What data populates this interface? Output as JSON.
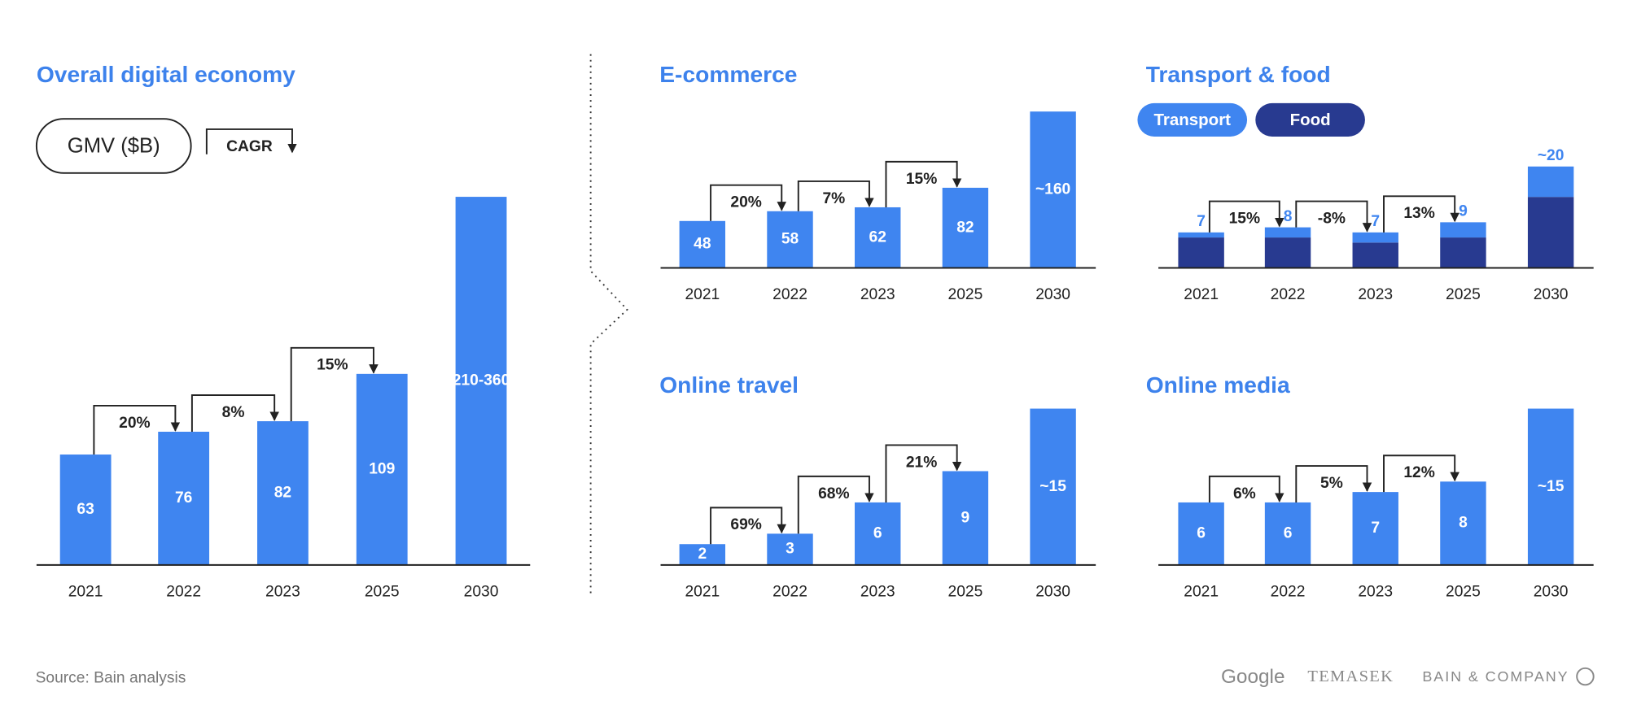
{
  "chart_data": [
    {
      "type": "bar",
      "title": "Overall digital economy",
      "categories": [
        "2021",
        "2022",
        "2023",
        "2025",
        "2030"
      ],
      "values": [
        63,
        76,
        82,
        109,
        210
      ],
      "value_labels": [
        "63",
        "76",
        "82",
        "109",
        "210-360"
      ],
      "color": "#3f85f0",
      "ylim": [
        0,
        220
      ],
      "annotations": [
        "20%",
        "8%",
        "15%"
      ]
    },
    {
      "type": "bar",
      "title": "E-commerce",
      "categories": [
        "2021",
        "2022",
        "2023",
        "2025",
        "2030"
      ],
      "values": [
        48,
        58,
        62,
        82,
        160
      ],
      "value_labels": [
        "48",
        "58",
        "62",
        "82",
        "~160"
      ],
      "color": "#3f85f0",
      "ylim": [
        0,
        160
      ],
      "annotations": [
        "20%",
        "7%",
        "15%"
      ]
    },
    {
      "type": "stacked_bar",
      "title": "Transport & food",
      "categories": [
        "2021",
        "2022",
        "2023",
        "2025",
        "2030"
      ],
      "series": [
        {
          "name": "Transport",
          "color": "#3f85f0",
          "values": [
            1,
            2,
            2,
            3,
            6
          ]
        },
        {
          "name": "Food",
          "color": "#283a90",
          "values": [
            6,
            6,
            5,
            6,
            14
          ]
        }
      ],
      "totals": [
        7,
        8,
        7,
        9,
        20
      ],
      "total_labels": [
        "7",
        "8",
        "7",
        "9",
        "~20"
      ],
      "ylim": [
        0,
        22
      ],
      "annotations": [
        "15%",
        "-8%",
        "13%"
      ]
    },
    {
      "type": "bar",
      "title": "Online travel",
      "categories": [
        "2021",
        "2022",
        "2023",
        "2025",
        "2030"
      ],
      "values": [
        2,
        3,
        6,
        9,
        15
      ],
      "value_labels": [
        "2",
        "3",
        "6",
        "9",
        "~15"
      ],
      "color": "#3f85f0",
      "ylim": [
        0,
        15
      ],
      "annotations": [
        "69%",
        "68%",
        "21%"
      ]
    },
    {
      "type": "bar",
      "title": "Online media",
      "categories": [
        "2021",
        "2022",
        "2023",
        "2025",
        "2030"
      ],
      "values": [
        6,
        6,
        7,
        8,
        15
      ],
      "value_labels": [
        "6",
        "6",
        "7",
        "8",
        "~15"
      ],
      "color": "#3f85f0",
      "ylim": [
        0,
        15
      ],
      "annotations": [
        "6%",
        "5%",
        "12%"
      ]
    }
  ],
  "legend": {
    "unit": "GMV ($B)",
    "cagr": "CAGR"
  },
  "footer": {
    "source": "Source: Bain analysis",
    "logos": [
      "Google",
      "TEMASEK",
      "BAIN & COMPANY"
    ]
  }
}
